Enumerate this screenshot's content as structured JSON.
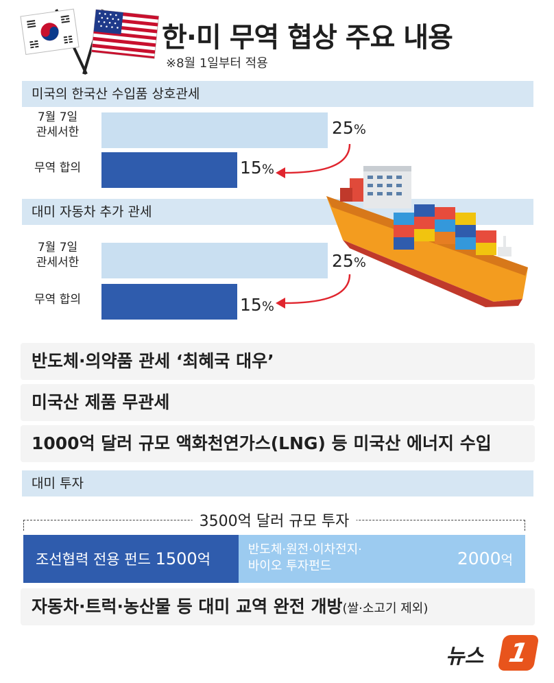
{
  "title": "한·미 무역 협상 주요 내용",
  "subtitle": "※8월 1일부터 적용",
  "colors": {
    "before": "#c9dff1",
    "after": "#2f5cad",
    "header_bg": "#d6e6f3",
    "arrow": "#e0252e"
  },
  "chart_data": [
    {
      "type": "bar",
      "title": "미국의 한국산 수입품 상호관세",
      "categories": [
        "7월 7일 관세서한",
        "무역 합의"
      ],
      "category_lines": [
        [
          "7월 7일",
          "관세서한"
        ],
        [
          "무역 합의"
        ]
      ],
      "values": [
        25,
        15
      ],
      "unit": "%",
      "xlim": [
        0,
        30
      ]
    },
    {
      "type": "bar",
      "title": "대미 자동차 추가 관세",
      "categories": [
        "7월 7일 관세서한",
        "무역 합의"
      ],
      "category_lines": [
        [
          "7월 7일",
          "관세서한"
        ],
        [
          "무역 합의"
        ]
      ],
      "values": [
        25,
        15
      ],
      "unit": "%",
      "xlim": [
        0,
        30
      ]
    },
    {
      "type": "bar",
      "title": "대미 투자",
      "total_label": "3500억 달러 규모 투자",
      "total_value": 3500,
      "segments": [
        {
          "label": "조선협력 전용 펀드",
          "value": 1500,
          "unit": "억"
        },
        {
          "label_lines": [
            "반도체·원전·이차전지·",
            "바이오 투자펀드"
          ],
          "value": 2000,
          "unit": "억"
        }
      ]
    }
  ],
  "items": {
    "semiconductor": "반도체·의약품 관세 ‘최혜국 대우’",
    "no_tariff": "미국산 제품 무관세",
    "energy": "1000억 달러 규모 액화천연가스(LNG) 등 미국산 에너지 수입",
    "market_main": "자동차·트럭·농산물 등 대미 교역 완전 개방",
    "market_paren": "(쌀·소고기 제외)"
  },
  "logo": {
    "text": "뉴스",
    "mark": "1"
  },
  "icons": {
    "flags": "korea-usa-flags-icon",
    "ship": "container-ship-icon"
  }
}
